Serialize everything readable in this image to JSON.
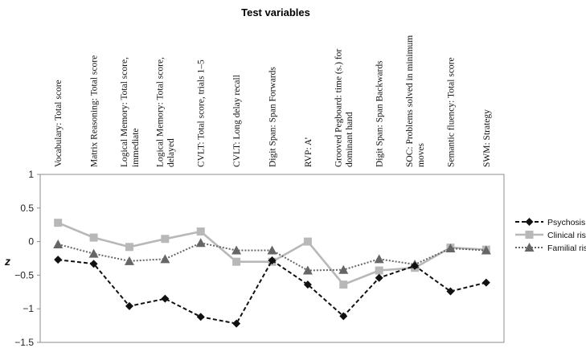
{
  "chart_data": {
    "type": "line",
    "title": "Test variables",
    "ylabel": "z",
    "ylim": [
      -1.5,
      1
    ],
    "yticks": [
      "1",
      "0.5",
      "0",
      "−0.5",
      "−1",
      "−1.5"
    ],
    "ytick_values": [
      1,
      0.5,
      0,
      -0.5,
      -1,
      -1.5
    ],
    "categories": [
      [
        "Vocabulary: Total score"
      ],
      [
        "Matrix Reasoning: Total score"
      ],
      [
        "Logical Memory: Total score,",
        "immediate"
      ],
      [
        "Logical Memory: Total score,",
        "delayed"
      ],
      [
        "CVLT: Total score, trials 1–5"
      ],
      [
        "CVLT: Long delay recall"
      ],
      [
        "Digit Span: Span Forwards"
      ],
      [
        "RVP: A’"
      ],
      [
        "Grooved Pegboard:  time (s.) for",
        "dominant hand"
      ],
      [
        "Digit Span: Span Backwards"
      ],
      [
        "SOC: Problems solved in minimum",
        "moves"
      ],
      [
        "Semantic fluency: Total score"
      ],
      [
        "SWM: Strategy"
      ]
    ],
    "series": [
      {
        "name": "Psychosis",
        "color": "#111111",
        "marker": "diamond",
        "dash": "5,3",
        "values": [
          -0.27,
          -0.33,
          -0.96,
          -0.85,
          -1.12,
          -1.22,
          -0.28,
          -0.64,
          -1.11,
          -0.54,
          -0.36,
          -0.74,
          -0.61
        ]
      },
      {
        "name": "Clinical risk",
        "color": "#b8b8b8",
        "marker": "square",
        "dash": "",
        "values": [
          0.28,
          0.06,
          -0.08,
          0.04,
          0.15,
          -0.3,
          -0.3,
          0.0,
          -0.64,
          -0.43,
          -0.39,
          -0.09,
          -0.12
        ]
      },
      {
        "name": "Familial risk",
        "color": "#666666",
        "marker": "triangle",
        "dash": "2,2",
        "values": [
          -0.04,
          -0.18,
          -0.29,
          -0.26,
          -0.02,
          -0.13,
          -0.13,
          -0.43,
          -0.42,
          -0.26,
          -0.34,
          -0.1,
          -0.13
        ]
      }
    ],
    "grid": false,
    "legend_position": "right"
  }
}
